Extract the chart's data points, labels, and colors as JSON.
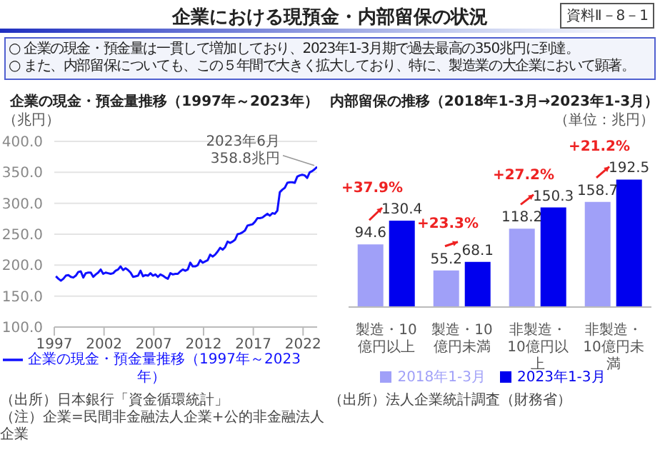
{
  "chart_data": [
    {
      "type": "other",
      "title": "企業における現預金・内部留保の状況",
      "annotations": [
        "資料Ⅱ－8－1",
        "○ 企業の現金・預金量は一貫して増加しており、2023年1-3月期で過去最高の350兆円に到達。",
        "○ また、内部留保についても、この５年間で大きく拡大しており、特に、製造業の大企業において顕著。"
      ]
    },
    {
      "type": "line",
      "title": "企業の現金・預金量推移（1997年～2023年）",
      "ylabel": "（兆円）",
      "grid": "y",
      "legend": "bottom",
      "x": [
        "1997-03",
        "1997-06",
        "1997-09",
        "1997-12",
        "1998-03",
        "1998-06",
        "1998-09",
        "1998-12",
        "1999-03",
        "1999-06",
        "1999-09",
        "1999-12",
        "2000-03",
        "2000-06",
        "2000-09",
        "2000-12",
        "2001-03",
        "2001-06",
        "2001-09",
        "2001-12",
        "2002-03",
        "2002-06",
        "2002-09",
        "2002-12",
        "2003-03",
        "2003-06",
        "2003-09",
        "2003-12",
        "2004-03",
        "2004-06",
        "2004-09",
        "2004-12",
        "2005-03",
        "2005-06",
        "2005-09",
        "2005-12",
        "2006-03",
        "2006-06",
        "2006-09",
        "2006-12",
        "2007-03",
        "2007-06",
        "2007-09",
        "2007-12",
        "2008-03",
        "2008-06",
        "2008-09",
        "2008-12",
        "2009-03",
        "2009-06",
        "2009-09",
        "2009-12",
        "2010-03",
        "2010-06",
        "2010-09",
        "2010-12",
        "2011-03",
        "2011-06",
        "2011-09",
        "2011-12",
        "2012-03",
        "2012-06",
        "2012-09",
        "2012-12",
        "2013-03",
        "2013-06",
        "2013-09",
        "2013-12",
        "2014-03",
        "2014-06",
        "2014-09",
        "2014-12",
        "2015-03",
        "2015-06",
        "2015-09",
        "2015-12",
        "2016-03",
        "2016-06",
        "2016-09",
        "2016-12",
        "2017-03",
        "2017-06",
        "2017-09",
        "2017-12",
        "2018-03",
        "2018-06",
        "2018-09",
        "2018-12",
        "2019-03",
        "2019-06",
        "2019-09",
        "2019-12",
        "2020-03",
        "2020-06",
        "2020-09",
        "2020-12",
        "2021-03",
        "2021-06",
        "2021-09",
        "2021-12",
        "2022-03",
        "2022-06",
        "2022-09",
        "2022-12",
        "2023-03",
        "2023-06"
      ],
      "series": [
        {
          "name": "企業の現金・預金量推移（1997年～2023年）",
          "color": "#1010ff",
          "values": [
            182,
            178,
            175,
            178,
            183,
            184,
            181,
            180,
            183,
            189,
            190,
            180,
            187,
            188,
            188,
            181,
            185,
            188,
            193,
            186,
            188,
            187,
            186,
            187,
            191,
            193,
            198,
            192,
            195,
            192,
            188,
            181,
            182,
            183,
            191,
            182,
            184,
            183,
            187,
            183,
            185,
            181,
            185,
            183,
            180,
            178,
            187,
            185,
            186,
            186,
            190,
            193,
            191,
            193,
            204,
            198,
            198,
            200,
            208,
            204,
            206,
            208,
            217,
            214,
            217,
            222,
            228,
            225,
            229,
            238,
            236,
            238,
            241,
            250,
            251,
            253,
            256,
            264,
            265,
            266,
            270,
            276,
            276,
            277,
            280,
            283,
            280,
            284,
            283,
            288,
            318,
            322,
            325,
            333,
            334,
            334,
            333,
            343,
            345,
            346,
            345,
            341,
            350,
            352,
            355,
            358.8
          ]
        }
      ],
      "xlim": [
        "1997-01",
        "2023-06"
      ],
      "xticks": [
        "1997",
        "2002",
        "2007",
        "2012",
        "2017",
        "2022"
      ],
      "ylim": [
        100,
        400
      ],
      "yticks": [
        {
          "value": 100,
          "label": "100.0"
        },
        {
          "value": 150,
          "label": "150.0"
        },
        {
          "value": 200,
          "label": "200.0"
        },
        {
          "value": 250,
          "label": "250.0"
        },
        {
          "value": 300,
          "label": "300.0"
        },
        {
          "value": 350,
          "label": "350.0"
        },
        {
          "value": 400,
          "label": "400.0"
        }
      ],
      "annotations": [
        {
          "text": "2023年6月",
          "x": "2023-06",
          "y": 358.8
        },
        {
          "text": "358.8兆円",
          "x": "2023-06",
          "y": 358.8
        },
        "（出所）日本銀行「資金循環統計」",
        "（注）企業=民間非金融法人企業+公的非金融法人企業"
      ]
    },
    {
      "type": "bar",
      "title": "内部留保の推移（2018年1-3月→2023年1-3月）",
      "legend": "bottom",
      "data_labels": true,
      "categories": [
        "製造・10億円以上",
        "製造・10億円未満",
        "非製造・10億円以上",
        "非製造・10億円未満"
      ],
      "series": [
        {
          "name": "2018年1-3月",
          "color": "#a0a0f8",
          "values": [
            94.6,
            55.2,
            118.2,
            158.7
          ]
        },
        {
          "name": "2023年1-3月",
          "color": "#0000ee",
          "values": [
            130.4,
            68.1,
            150.3,
            192.5
          ]
        }
      ],
      "annotations": [
        "（単位：兆円）",
        {
          "text": "+37.9%",
          "x": "製造・10億円以上",
          "y": 130.4
        },
        {
          "text": "+23.3%",
          "x": "製造・10億円未満",
          "y": 68.1
        },
        {
          "text": "+27.2%",
          "x": "非製造・10億円以上",
          "y": 150.3
        },
        {
          "text": "+21.2%",
          "x": "非製造・10億円未満",
          "y": 192.5
        },
        "（出所）法人企業統計調査（財務省）"
      ]
    }
  ]
}
